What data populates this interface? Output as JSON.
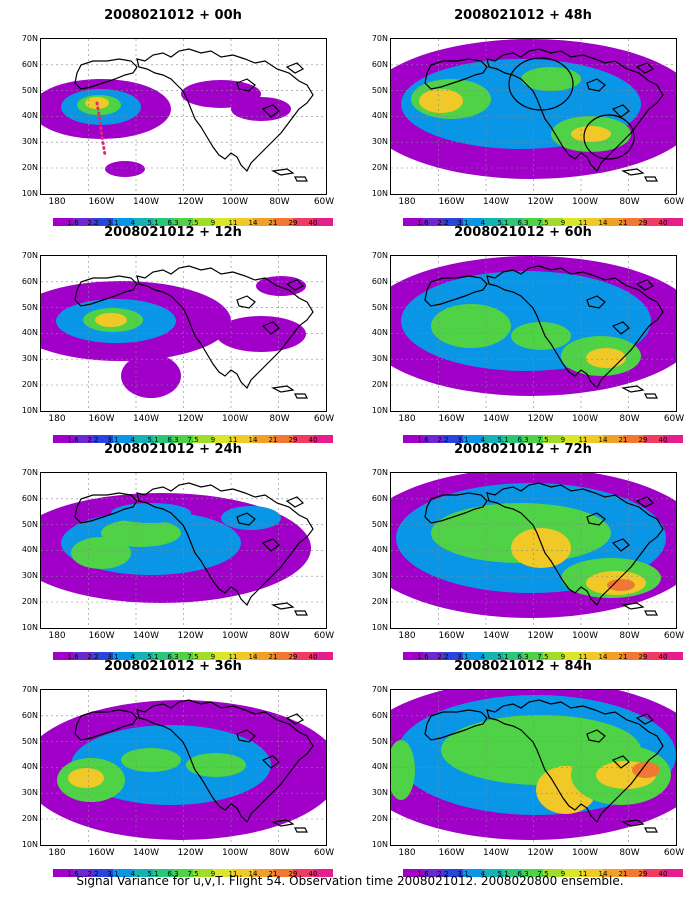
{
  "caption": "Signal Variance for u,v,T. Flight 54. Observation time 2008021012. 2008020800 ensemble.",
  "lat_labels": [
    "70N",
    "60N",
    "50N",
    "40N",
    "30N",
    "20N",
    "10N"
  ],
  "lon_labels": [
    "180",
    "160W",
    "140W",
    "120W",
    "100W",
    "80W",
    "60W"
  ],
  "colorbar": {
    "labels": [
      "1.6",
      "2.2",
      "3.1",
      "4",
      "5.1",
      "6.3",
      "7.5",
      "9",
      "11",
      "14",
      "21",
      "29",
      "40"
    ],
    "colors": [
      "#a000c8",
      "#6e28d2",
      "#2846dc",
      "#0a96e6",
      "#14b4b4",
      "#28c878",
      "#50d246",
      "#a0dc28",
      "#dce628",
      "#f0c828",
      "#f0a028",
      "#f07832",
      "#f03c64",
      "#e61e8c"
    ]
  },
  "panels": [
    {
      "title": "2008021012 + 00h",
      "level": 0
    },
    {
      "title": "2008021012 + 12h",
      "level": 1
    },
    {
      "title": "2008021012 + 24h",
      "level": 2
    },
    {
      "title": "2008021012 + 36h",
      "level": 3
    },
    {
      "title": "2008021012 + 48h",
      "level": 4
    },
    {
      "title": "2008021012 + 60h",
      "level": 5
    },
    {
      "title": "2008021012 + 72h",
      "level": 6
    },
    {
      "title": "2008021012 + 84h",
      "level": 7
    }
  ]
}
